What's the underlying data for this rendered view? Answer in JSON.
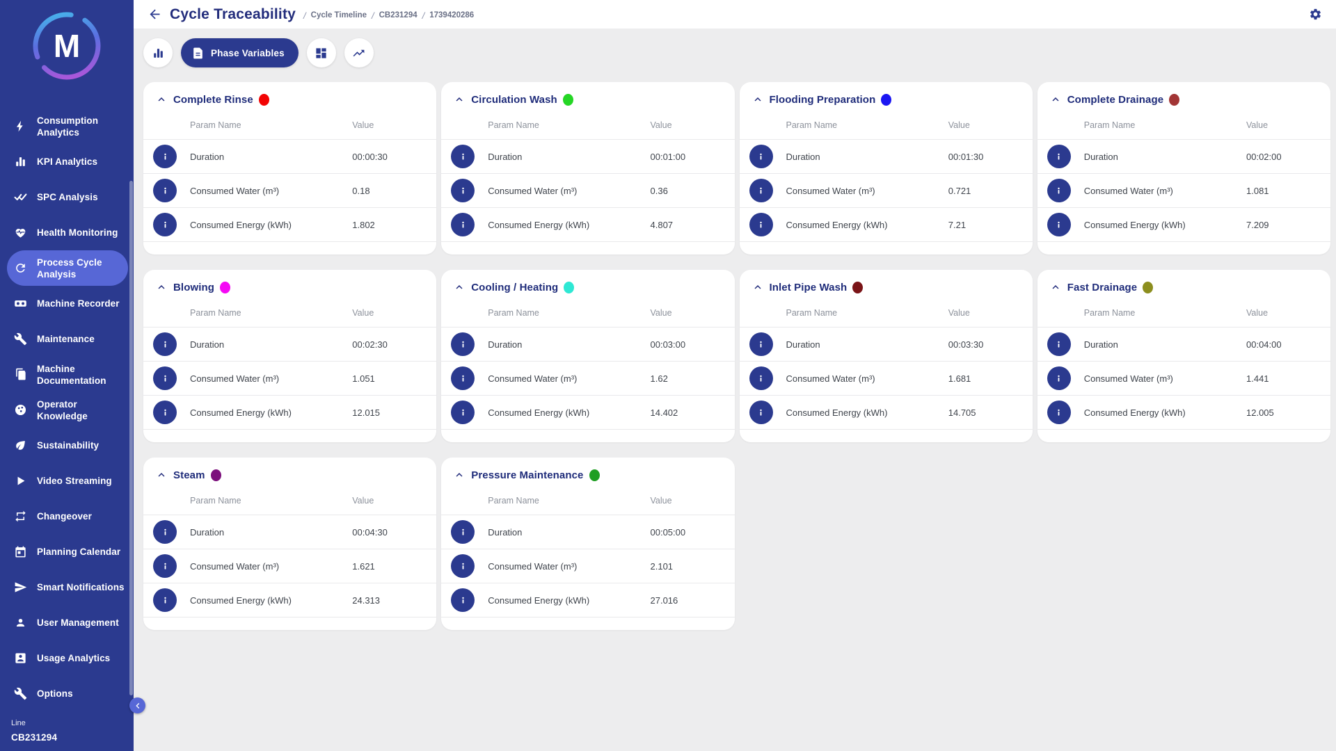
{
  "app": {
    "logo_letter": "M",
    "accent_color": "#2b3a8f",
    "selected_color": "#5767d6"
  },
  "header": {
    "title": "Cycle Traceability",
    "separator": "/",
    "breadcrumbs": [
      "Cycle Timeline",
      "CB231294",
      "1739420286"
    ]
  },
  "toolbar": {
    "buttons": [
      {
        "name": "chart-view-button",
        "icon": "bar-chart-icon",
        "label": "",
        "active": false
      },
      {
        "name": "phase-variables-button",
        "icon": "document-icon",
        "label": "Phase Variables",
        "active": true
      },
      {
        "name": "grid-view-button",
        "icon": "dashboard-icon",
        "label": "",
        "active": false
      },
      {
        "name": "trend-view-button",
        "icon": "line-chart-icon",
        "label": "",
        "active": false
      }
    ]
  },
  "sidebar": {
    "items": [
      {
        "label": "Consumption Analytics",
        "icon": "bolt-icon"
      },
      {
        "label": "KPI Analytics",
        "icon": "bar-chart-icon"
      },
      {
        "label": "SPC Analysis",
        "icon": "double-check-icon"
      },
      {
        "label": "Health Monitoring",
        "icon": "heart-pulse-icon"
      },
      {
        "label": "Process Cycle Analysis",
        "icon": "cycle-icon",
        "selected": true
      },
      {
        "label": "Machine Recorder",
        "icon": "recorder-icon"
      },
      {
        "label": "Maintenance",
        "icon": "wrench-icon"
      },
      {
        "label": "Machine Documentation",
        "icon": "documents-icon"
      },
      {
        "label": "Operator Knowledge",
        "icon": "knowledge-icon"
      },
      {
        "label": "Sustainability",
        "icon": "leaf-icon"
      },
      {
        "label": "Video Streaming",
        "icon": "play-icon"
      },
      {
        "label": "Changeover",
        "icon": "swap-arrows-icon"
      },
      {
        "label": "Planning Calendar",
        "icon": "calendar-icon"
      },
      {
        "label": "Smart Notifications",
        "icon": "send-icon"
      },
      {
        "label": "User Management",
        "icon": "user-icon"
      },
      {
        "label": "Usage Analytics",
        "icon": "badge-icon"
      },
      {
        "label": "Options",
        "icon": "wrench-icon"
      }
    ],
    "footer": {
      "line_label": "Line",
      "line_value": "CB231294"
    }
  },
  "cards": {
    "column_headers": [
      "Param Name",
      "Value"
    ],
    "phases": [
      {
        "title": "Complete Rinse",
        "color": "#f20404",
        "rows": [
          {
            "param": "Duration",
            "value": "00:00:30"
          },
          {
            "param": "Consumed Water (m³)",
            "value": "0.18"
          },
          {
            "param": "Consumed Energy (kWh)",
            "value": "1.802"
          }
        ]
      },
      {
        "title": "Circulation Wash",
        "color": "#25d625",
        "rows": [
          {
            "param": "Duration",
            "value": "00:01:00"
          },
          {
            "param": "Consumed Water (m³)",
            "value": "0.36"
          },
          {
            "param": "Consumed Energy (kWh)",
            "value": "4.807"
          }
        ]
      },
      {
        "title": "Flooding Preparation",
        "color": "#1b16f2",
        "rows": [
          {
            "param": "Duration",
            "value": "00:01:30"
          },
          {
            "param": "Consumed Water (m³)",
            "value": "0.721"
          },
          {
            "param": "Consumed Energy (kWh)",
            "value": "7.21"
          }
        ]
      },
      {
        "title": "Complete Drainage",
        "color": "#a23535",
        "rows": [
          {
            "param": "Duration",
            "value": "00:02:00"
          },
          {
            "param": "Consumed Water (m³)",
            "value": "1.081"
          },
          {
            "param": "Consumed Energy (kWh)",
            "value": "7.209"
          }
        ]
      },
      {
        "title": "Blowing",
        "color": "#f509f5",
        "rows": [
          {
            "param": "Duration",
            "value": "00:02:30"
          },
          {
            "param": "Consumed Water (m³)",
            "value": "1.051"
          },
          {
            "param": "Consumed Energy (kWh)",
            "value": "12.015"
          }
        ]
      },
      {
        "title": "Cooling / Heating",
        "color": "#2ee8d4",
        "rows": [
          {
            "param": "Duration",
            "value": "00:03:00"
          },
          {
            "param": "Consumed Water (m³)",
            "value": "1.62"
          },
          {
            "param": "Consumed Energy (kWh)",
            "value": "14.402"
          }
        ]
      },
      {
        "title": "Inlet Pipe Wash",
        "color": "#7a1417",
        "rows": [
          {
            "param": "Duration",
            "value": "00:03:30"
          },
          {
            "param": "Consumed Water (m³)",
            "value": "1.681"
          },
          {
            "param": "Consumed Energy (kWh)",
            "value": "14.705"
          }
        ]
      },
      {
        "title": "Fast Drainage",
        "color": "#8c8e1e",
        "rows": [
          {
            "param": "Duration",
            "value": "00:04:00"
          },
          {
            "param": "Consumed Water (m³)",
            "value": "1.441"
          },
          {
            "param": "Consumed Energy (kWh)",
            "value": "12.005"
          }
        ]
      },
      {
        "title": "Steam",
        "color": "#7c107c",
        "rows": [
          {
            "param": "Duration",
            "value": "00:04:30"
          },
          {
            "param": "Consumed Water (m³)",
            "value": "1.621"
          },
          {
            "param": "Consumed Energy (kWh)",
            "value": "24.313"
          }
        ]
      },
      {
        "title": "Pressure Maintenance",
        "color": "#1f9e22",
        "rows": [
          {
            "param": "Duration",
            "value": "00:05:00"
          },
          {
            "param": "Consumed Water (m³)",
            "value": "2.101"
          },
          {
            "param": "Consumed Energy (kWh)",
            "value": "27.016"
          }
        ]
      }
    ]
  }
}
